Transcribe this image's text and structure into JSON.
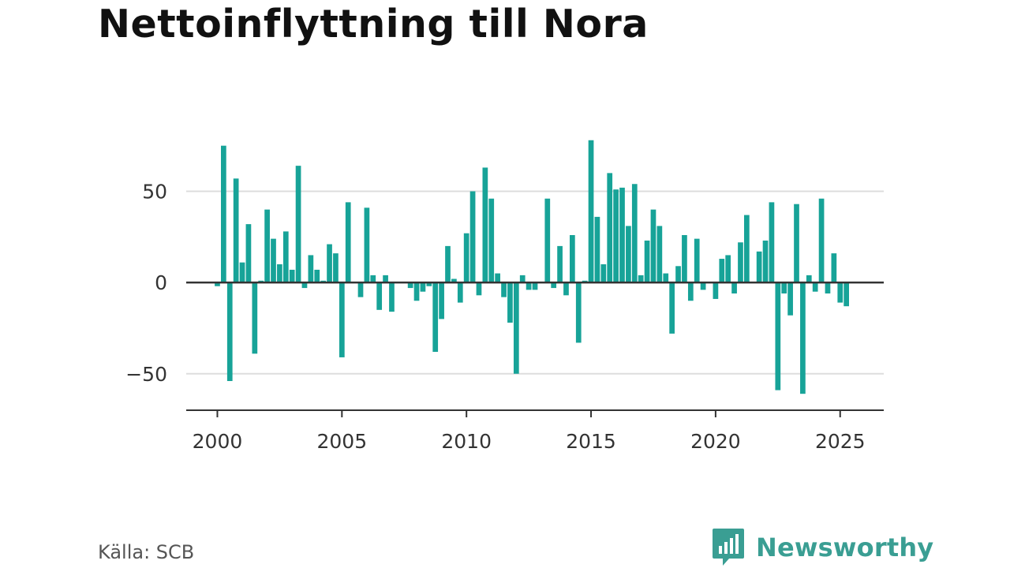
{
  "title": "Nettoinflyttning till Nora",
  "source": "Källa: SCB",
  "brand": {
    "name": "Newsworthy",
    "logo_icon": "bar-chart-speech-bubble-icon"
  },
  "colors": {
    "bar": "#17a398",
    "zero_line": "#333333",
    "grid": "#dddddd",
    "brand": "#3a9e93"
  },
  "chart_data": {
    "type": "bar",
    "title": "Nettoinflyttning till Nora",
    "xlabel": "",
    "ylabel": "",
    "x_ticks": [
      "2000",
      "2005",
      "2010",
      "2015",
      "2020",
      "2025"
    ],
    "y_ticks": [
      {
        "value": -50,
        "label": "−50"
      },
      {
        "value": 0,
        "label": "0"
      },
      {
        "value": 50,
        "label": "50"
      }
    ],
    "ylim": [
      -70,
      90
    ],
    "xlim": [
      1998.75,
      2026.75
    ],
    "grid": true,
    "series": [
      {
        "quarters": [
          "2000Q1",
          "2000Q2",
          "2000Q3",
          "2000Q4",
          "2001Q1",
          "2001Q2",
          "2001Q3",
          "2001Q4",
          "2002Q1",
          "2002Q2",
          "2002Q3",
          "2002Q4",
          "2003Q1",
          "2003Q2",
          "2003Q3",
          "2003Q4",
          "2004Q1",
          "2004Q2",
          "2004Q3",
          "2004Q4",
          "2005Q1",
          "2005Q2",
          "2005Q3",
          "2005Q4",
          "2006Q1",
          "2006Q2",
          "2006Q3",
          "2006Q4",
          "2007Q1",
          "2007Q2",
          "2007Q3",
          "2007Q4",
          "2008Q1",
          "2008Q2",
          "2008Q3",
          "2008Q4",
          "2009Q1",
          "2009Q2",
          "2009Q3",
          "2009Q4",
          "2010Q1",
          "2010Q2",
          "2010Q3",
          "2010Q4",
          "2011Q1",
          "2011Q2",
          "2011Q3",
          "2011Q4",
          "2012Q1",
          "2012Q2",
          "2012Q3",
          "2012Q4",
          "2013Q1",
          "2013Q2",
          "2013Q3",
          "2013Q4",
          "2014Q1",
          "2014Q2",
          "2014Q3",
          "2014Q4",
          "2015Q1",
          "2015Q2",
          "2015Q3",
          "2015Q4",
          "2016Q1",
          "2016Q2",
          "2016Q3",
          "2016Q4",
          "2017Q1",
          "2017Q2",
          "2017Q3",
          "2017Q4",
          "2018Q1",
          "2018Q2",
          "2018Q3",
          "2018Q4",
          "2019Q1",
          "2019Q2",
          "2019Q3",
          "2019Q4",
          "2020Q1",
          "2020Q2",
          "2020Q3",
          "2020Q4",
          "2021Q1",
          "2021Q2",
          "2021Q3",
          "2021Q4",
          "2022Q1",
          "2022Q2",
          "2022Q3",
          "2022Q4",
          "2023Q1",
          "2023Q2",
          "2023Q3",
          "2023Q4",
          "2024Q1",
          "2024Q2",
          "2024Q3",
          "2024Q4",
          "2025Q1",
          "2025Q2"
        ],
        "values": [
          -2,
          75,
          -54,
          57,
          11,
          32,
          -39,
          1,
          40,
          24,
          10,
          28,
          7,
          64,
          -3,
          15,
          7,
          1,
          21,
          16,
          -41,
          44,
          0,
          -8,
          41,
          4,
          -15,
          4,
          -16,
          0,
          0,
          -3,
          -10,
          -5,
          -2,
          -38,
          -20,
          20,
          2,
          -11,
          27,
          50,
          -7,
          63,
          46,
          5,
          -8,
          -22,
          -50,
          4,
          -4,
          -4,
          0,
          46,
          -3,
          20,
          -7,
          26,
          -33,
          1,
          78,
          36,
          10,
          60,
          51,
          52,
          31,
          54,
          4,
          23,
          40,
          31,
          5,
          -28,
          9,
          26,
          -10,
          24,
          -4,
          0,
          -9,
          13,
          15,
          -6,
          22,
          37,
          0,
          17,
          23,
          44,
          -59,
          -6,
          -18,
          43,
          -61,
          4,
          -5,
          46,
          -6,
          16,
          -11,
          -13
        ]
      }
    ]
  }
}
